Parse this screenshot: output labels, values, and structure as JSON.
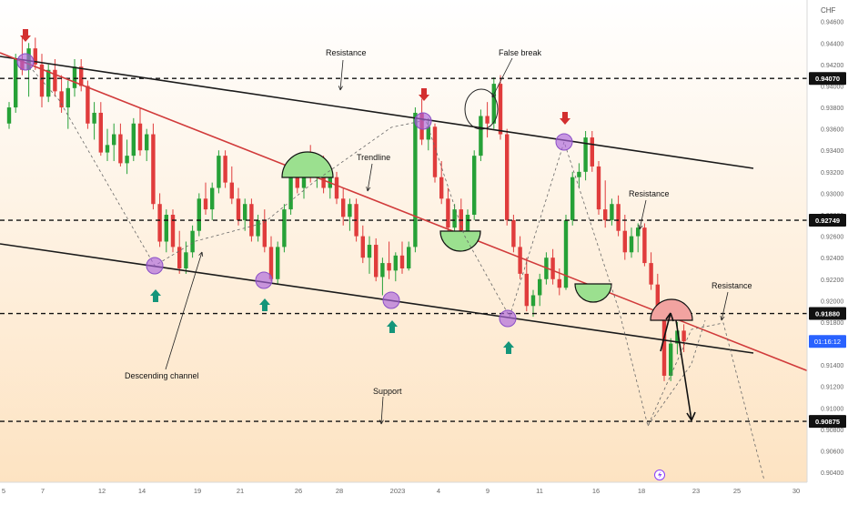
{
  "currency": "CHF",
  "annotations": {
    "resistance_top": "Resistance",
    "false_break": "False break",
    "trendline": "Trendline",
    "resistance_mid": "Resistance",
    "resistance_right": "Resistance",
    "descending_channel": "Descending channel",
    "support": "Support"
  },
  "price_marks": [
    "0.94070",
    "0.92749",
    "0.91880",
    "0.90875"
  ],
  "current": {
    "label": "01:16:12",
    "price": 0.9162
  },
  "chart_data": {
    "type": "candlestick",
    "symbol_unit": "CHF",
    "yaxis_ticks": [
      "0.94600",
      "0.94400",
      "0.94200",
      "0.94000",
      "0.93800",
      "0.93600",
      "0.93400",
      "0.93200",
      "0.93000",
      "0.92800",
      "0.92600",
      "0.92400",
      "0.92200",
      "0.92000",
      "0.91800",
      "0.91600",
      "0.91400",
      "0.91200",
      "0.91000",
      "0.90800",
      "0.90600",
      "0.90400"
    ],
    "ylim": [
      0.9035,
      0.9475
    ],
    "xaxis_ticks": [
      "5",
      "7",
      "12",
      "14",
      "19",
      "21",
      "26",
      "28",
      "2023",
      "4",
      "9",
      "11",
      "16",
      "18",
      "23",
      "25",
      "30"
    ],
    "levels": [
      {
        "label": "Resistance",
        "value": 0.9407
      },
      {
        "label": "Resistance",
        "value": 0.92749
      },
      {
        "label": "Resistance",
        "value": 0.9188
      },
      {
        "label": "Support",
        "value": 0.90875
      }
    ],
    "candles": [
      [
        0.9365,
        0.9385,
        0.936,
        0.938
      ],
      [
        0.938,
        0.943,
        0.9375,
        0.9425
      ],
      [
        0.9425,
        0.9445,
        0.941,
        0.9415
      ],
      [
        0.9415,
        0.944,
        0.939,
        0.9435
      ],
      [
        0.9435,
        0.9445,
        0.9415,
        0.942
      ],
      [
        0.942,
        0.943,
        0.938,
        0.939
      ],
      [
        0.939,
        0.942,
        0.9385,
        0.9415
      ],
      [
        0.9415,
        0.9425,
        0.939,
        0.9395
      ],
      [
        0.9395,
        0.941,
        0.9375,
        0.938
      ],
      [
        0.938,
        0.9405,
        0.936,
        0.9398
      ],
      [
        0.9398,
        0.9425,
        0.939,
        0.9418
      ],
      [
        0.9418,
        0.9425,
        0.9395,
        0.94
      ],
      [
        0.94,
        0.9405,
        0.936,
        0.9365
      ],
      [
        0.9365,
        0.9385,
        0.935,
        0.9375
      ],
      [
        0.9375,
        0.9385,
        0.9335,
        0.9338
      ],
      [
        0.9338,
        0.936,
        0.933,
        0.9345
      ],
      [
        0.9345,
        0.9365,
        0.933,
        0.9355
      ],
      [
        0.9355,
        0.9365,
        0.9325,
        0.9328
      ],
      [
        0.9328,
        0.935,
        0.9318,
        0.9335
      ],
      [
        0.9335,
        0.937,
        0.933,
        0.9365
      ],
      [
        0.9365,
        0.938,
        0.9335,
        0.934
      ],
      [
        0.934,
        0.936,
        0.933,
        0.9355
      ],
      [
        0.9355,
        0.9365,
        0.9285,
        0.929
      ],
      [
        0.929,
        0.93,
        0.925,
        0.9255
      ],
      [
        0.9255,
        0.9285,
        0.9245,
        0.928
      ],
      [
        0.928,
        0.9285,
        0.9245,
        0.925
      ],
      [
        0.925,
        0.9265,
        0.9225,
        0.923
      ],
      [
        0.923,
        0.9255,
        0.9225,
        0.9245
      ],
      [
        0.9245,
        0.927,
        0.924,
        0.9265
      ],
      [
        0.9265,
        0.93,
        0.926,
        0.9295
      ],
      [
        0.9295,
        0.931,
        0.928,
        0.9285
      ],
      [
        0.9285,
        0.931,
        0.9275,
        0.9305
      ],
      [
        0.9305,
        0.934,
        0.93,
        0.9335
      ],
      [
        0.9335,
        0.934,
        0.9305,
        0.931
      ],
      [
        0.931,
        0.9325,
        0.929,
        0.9295
      ],
      [
        0.9295,
        0.9305,
        0.927,
        0.9275
      ],
      [
        0.9275,
        0.9295,
        0.9265,
        0.929
      ],
      [
        0.929,
        0.9295,
        0.9255,
        0.926
      ],
      [
        0.926,
        0.928,
        0.9255,
        0.9275
      ],
      [
        0.9275,
        0.9285,
        0.9245,
        0.925
      ],
      [
        0.925,
        0.926,
        0.9218,
        0.922
      ],
      [
        0.922,
        0.9255,
        0.9215,
        0.925
      ],
      [
        0.925,
        0.929,
        0.9245,
        0.9285
      ],
      [
        0.9285,
        0.932,
        0.928,
        0.9315
      ],
      [
        0.9315,
        0.933,
        0.93,
        0.9305
      ],
      [
        0.9305,
        0.9335,
        0.9295,
        0.933
      ],
      [
        0.933,
        0.9345,
        0.931,
        0.9318
      ],
      [
        0.9318,
        0.933,
        0.9305,
        0.9325
      ],
      [
        0.9325,
        0.9335,
        0.93,
        0.9305
      ],
      [
        0.9305,
        0.932,
        0.9295,
        0.9315
      ],
      [
        0.9315,
        0.932,
        0.929,
        0.9295
      ],
      [
        0.9295,
        0.9305,
        0.927,
        0.9278
      ],
      [
        0.9278,
        0.9295,
        0.9265,
        0.929
      ],
      [
        0.929,
        0.9295,
        0.9255,
        0.926
      ],
      [
        0.926,
        0.927,
        0.9235,
        0.924
      ],
      [
        0.924,
        0.926,
        0.9225,
        0.9252
      ],
      [
        0.9252,
        0.9258,
        0.9218,
        0.9222
      ],
      [
        0.9222,
        0.924,
        0.9205,
        0.9235
      ],
      [
        0.9235,
        0.9255,
        0.922,
        0.9228
      ],
      [
        0.9228,
        0.9245,
        0.9218,
        0.9242
      ],
      [
        0.9242,
        0.9255,
        0.9225,
        0.923
      ],
      [
        0.923,
        0.9255,
        0.9228,
        0.925
      ],
      [
        0.925,
        0.938,
        0.9245,
        0.9375
      ],
      [
        0.9375,
        0.9388,
        0.9345,
        0.935
      ],
      [
        0.935,
        0.937,
        0.934,
        0.9362
      ],
      [
        0.9362,
        0.9365,
        0.931,
        0.9315
      ],
      [
        0.9315,
        0.933,
        0.929,
        0.9295
      ],
      [
        0.9295,
        0.9305,
        0.9262,
        0.9268
      ],
      [
        0.9268,
        0.929,
        0.926,
        0.9285
      ],
      [
        0.9285,
        0.9295,
        0.9258,
        0.9262
      ],
      [
        0.9262,
        0.9285,
        0.9255,
        0.928
      ],
      [
        0.928,
        0.934,
        0.9275,
        0.9335
      ],
      [
        0.9335,
        0.9378,
        0.933,
        0.9372
      ],
      [
        0.9372,
        0.9385,
        0.9352,
        0.9365
      ],
      [
        0.9365,
        0.9408,
        0.936,
        0.9402
      ],
      [
        0.9402,
        0.941,
        0.935,
        0.9355
      ],
      [
        0.9355,
        0.936,
        0.927,
        0.9275
      ],
      [
        0.9275,
        0.928,
        0.9245,
        0.925
      ],
      [
        0.925,
        0.926,
        0.922,
        0.9225
      ],
      [
        0.9225,
        0.924,
        0.919,
        0.9195
      ],
      [
        0.9195,
        0.921,
        0.9185,
        0.9205
      ],
      [
        0.9205,
        0.9225,
        0.9195,
        0.922
      ],
      [
        0.922,
        0.9245,
        0.9215,
        0.924
      ],
      [
        0.924,
        0.9248,
        0.9215,
        0.922
      ],
      [
        0.922,
        0.923,
        0.9205,
        0.9212
      ],
      [
        0.9212,
        0.928,
        0.921,
        0.9275
      ],
      [
        0.9275,
        0.932,
        0.927,
        0.9315
      ],
      [
        0.9315,
        0.9328,
        0.9305,
        0.932
      ],
      [
        0.932,
        0.9358,
        0.9312,
        0.9352
      ],
      [
        0.9352,
        0.9358,
        0.932,
        0.9325
      ],
      [
        0.9325,
        0.933,
        0.928,
        0.9285
      ],
      [
        0.9285,
        0.9312,
        0.9268,
        0.9275
      ],
      [
        0.9275,
        0.9295,
        0.927,
        0.929
      ],
      [
        0.929,
        0.9298,
        0.926,
        0.9265
      ],
      [
        0.9265,
        0.928,
        0.9238,
        0.9245
      ],
      [
        0.9245,
        0.9268,
        0.924,
        0.926
      ],
      [
        0.926,
        0.9272,
        0.9245,
        0.9268
      ],
      [
        0.9268,
        0.9272,
        0.9232,
        0.9235
      ],
      [
        0.9235,
        0.9245,
        0.921,
        0.9215
      ],
      [
        0.9215,
        0.9225,
        0.919,
        0.9192
      ],
      [
        0.9192,
        0.9198,
        0.9125,
        0.913
      ],
      [
        0.913,
        0.9165,
        0.9125,
        0.916
      ],
      [
        0.916,
        0.918,
        0.915,
        0.9172
      ],
      [
        0.9172,
        0.9178,
        0.9152,
        0.9162
      ]
    ]
  }
}
